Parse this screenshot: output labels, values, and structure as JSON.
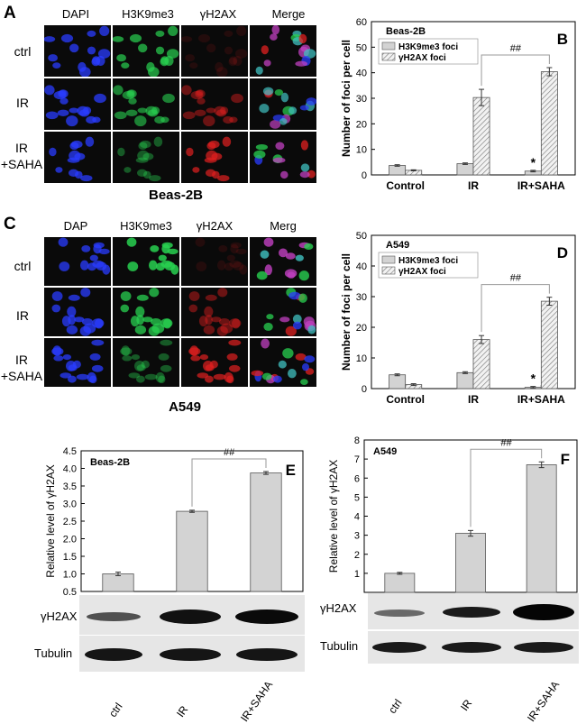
{
  "panels": {
    "A": {
      "letter": "A",
      "columns": [
        "DAPI",
        "H3K9me3",
        "γH2AX",
        "Merge"
      ],
      "rows": [
        "ctrl",
        "IR",
        "IR\n+SAHA"
      ],
      "cell_line": "Beas-2B"
    },
    "C": {
      "letter": "C",
      "columns": [
        "DAP",
        "H3K9me3",
        "γH2AX",
        "Merg"
      ],
      "rows": [
        "ctrl",
        "IR",
        "IR\n+SAHA"
      ],
      "cell_line": "A549"
    },
    "E": {
      "letter": "E",
      "blot_rows": [
        "γH2AX",
        "Tubulin"
      ],
      "lanes": [
        "ctrl",
        "IR",
        "IR+SAHA"
      ]
    },
    "F": {
      "letter": "F",
      "blot_rows": [
        "γH2AX",
        "Tubulin"
      ],
      "lanes": [
        "ctrl",
        "IR",
        "IR+SAHA"
      ]
    }
  },
  "colors": {
    "dapi": "#2a3cff",
    "h3k9": "#28d050",
    "gh2ax": "#e02020",
    "bar_fill": "#d3d3d3",
    "bar_hatch": "#c8c8c8"
  },
  "chart_data": [
    {
      "id": "B",
      "letter": "B",
      "type": "bar",
      "title": "Beas-2B",
      "ylabel": "Number of foci per cell",
      "xlabel": "",
      "ylim": [
        0,
        60
      ],
      "yticks": [
        0,
        10,
        20,
        30,
        40,
        50,
        60
      ],
      "categories": [
        "Control",
        "IR",
        "IR+SAHA"
      ],
      "series": [
        {
          "name": "H3K9me3 foci",
          "values": [
            3.7,
            4.4,
            1.5
          ],
          "errors": [
            0.3,
            0.3,
            0.3
          ],
          "style": "solid"
        },
        {
          "name": "γH2AX foci",
          "values": [
            1.8,
            30.3,
            40.4
          ],
          "errors": [
            0.2,
            3.2,
            1.6
          ],
          "style": "hatched"
        }
      ],
      "annotations": [
        {
          "text": "*",
          "category": 2,
          "series": 0
        },
        {
          "text": "##",
          "from": 1,
          "to": 2,
          "series": 1
        }
      ],
      "legend": "top-left"
    },
    {
      "id": "D",
      "letter": "D",
      "type": "bar",
      "title": "A549",
      "ylabel": "Number of foci per cell",
      "xlabel": "",
      "ylim": [
        0,
        50
      ],
      "yticks": [
        0,
        10,
        20,
        30,
        40,
        50
      ],
      "categories": [
        "Control",
        "IR",
        "IR+SAHA"
      ],
      "series": [
        {
          "name": "H3K9me3 foci",
          "values": [
            4.5,
            5.2,
            0.4
          ],
          "errors": [
            0.3,
            0.3,
            0.3
          ],
          "style": "solid"
        },
        {
          "name": "γH2AX foci",
          "values": [
            1.3,
            16.0,
            28.5
          ],
          "errors": [
            0.3,
            1.3,
            1.3
          ],
          "style": "hatched"
        }
      ],
      "annotations": [
        {
          "text": "*",
          "category": 2,
          "series": 0
        },
        {
          "text": "##",
          "from": 1,
          "to": 2,
          "series": 1
        }
      ],
      "legend": "top-left"
    },
    {
      "id": "E",
      "letter": "E",
      "type": "bar",
      "title": "Beas-2B",
      "ylabel": "Relative level of γH2AX",
      "xlabel": "",
      "ylim": [
        0.5,
        4.5
      ],
      "yticks": [
        0.5,
        1.0,
        1.5,
        2.0,
        2.5,
        3.0,
        3.5,
        4.0,
        4.5
      ],
      "ytick_labels": [
        "0.5",
        "1.0",
        "1.5",
        "2.0",
        "2.5",
        "3.0",
        "3.5",
        "4.0",
        "4.5"
      ],
      "categories": [
        "ctrl",
        "IR",
        "IR+SAHA"
      ],
      "values": [
        1.0,
        2.78,
        3.87
      ],
      "errors": [
        0.05,
        0.03,
        0.04
      ],
      "annotations": [
        {
          "text": "##",
          "from": 1,
          "to": 2
        }
      ]
    },
    {
      "id": "F",
      "letter": "F",
      "type": "bar",
      "title": "A549",
      "ylabel": "Relative level of γH2AX",
      "xlabel": "",
      "ylim": [
        0,
        8
      ],
      "yticks": [
        1,
        2,
        3,
        4,
        5,
        6,
        7,
        8
      ],
      "ytick_labels": [
        "1",
        "2",
        "3",
        "4",
        "5",
        "6",
        "7",
        "8"
      ],
      "categories": [
        "ctrl",
        "IR",
        "IR+SAHA"
      ],
      "values": [
        1.0,
        3.1,
        6.7
      ],
      "errors": [
        0.05,
        0.15,
        0.15
      ],
      "annotations": [
        {
          "text": "##",
          "from": 1,
          "to": 2
        }
      ]
    }
  ]
}
